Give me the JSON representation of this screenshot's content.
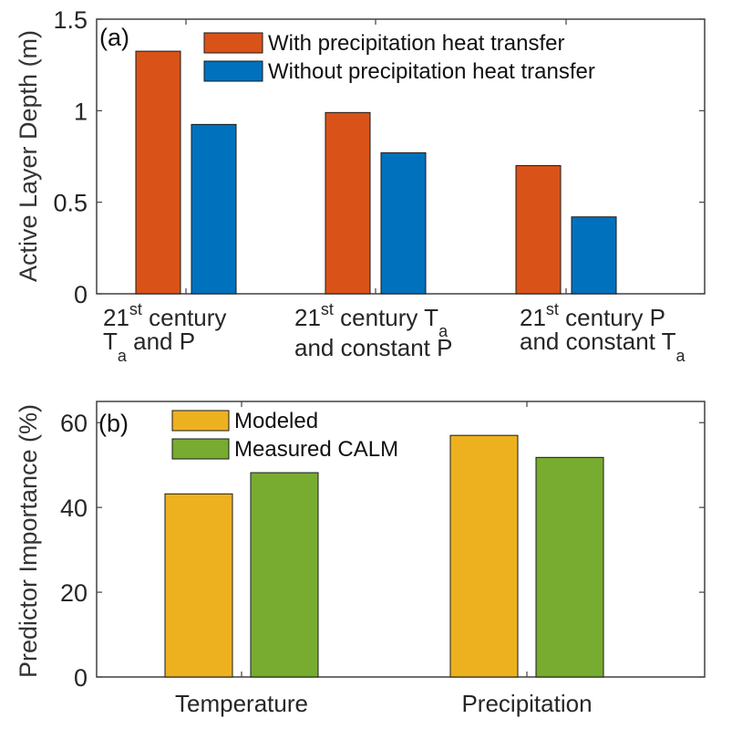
{
  "chart_data": [
    {
      "type": "bar",
      "panel_tag": "(a)",
      "ylabel": "Active Layer Depth (m)",
      "xlabel": "",
      "ylim": [
        0,
        1.5
      ],
      "yticks": [
        0,
        0.5,
        1,
        1.5
      ],
      "ytick_labels": [
        "0",
        "0.5",
        "1",
        "1.5"
      ],
      "grid": false,
      "legend_position": "top-right",
      "categories": [
        {
          "line1_main": "21",
          "line1_sup": "st",
          "line1_rest": " century",
          "line2_main": "T",
          "line2_sub": "a",
          "line2_rest": " and P"
        },
        {
          "line1_main": "21",
          "line1_sup": "st",
          "line1_rest": " century T",
          "line1_sub": "a",
          "line2_main": "and constant P"
        },
        {
          "line1_main": "21",
          "line1_sup": "st",
          "line1_rest": " century P",
          "line2_main": "and constant T",
          "line2_sub": "a"
        }
      ],
      "series": [
        {
          "name": "With precipitation heat transfer",
          "color": "#D95319",
          "values": [
            1.325,
            0.99,
            0.7
          ]
        },
        {
          "name": "Without precipitation heat transfer",
          "color": "#0072BD",
          "values": [
            0.925,
            0.77,
            0.42
          ]
        }
      ]
    },
    {
      "type": "bar",
      "panel_tag": "(b)",
      "ylabel": "Predictor Importance (%)",
      "xlabel": "",
      "ylim": [
        0,
        65
      ],
      "yticks": [
        0,
        20,
        40,
        60
      ],
      "ytick_labels": [
        "0",
        "20",
        "40",
        "60"
      ],
      "grid": false,
      "legend_position": "top-left",
      "categories": [
        "Temperature",
        "Precipitation"
      ],
      "series": [
        {
          "name": "Modeled",
          "color": "#EDB120",
          "values": [
            43.2,
            57.0
          ]
        },
        {
          "name": "Measured CALM",
          "color": "#77AC30",
          "values": [
            48.2,
            51.8
          ]
        }
      ]
    }
  ]
}
